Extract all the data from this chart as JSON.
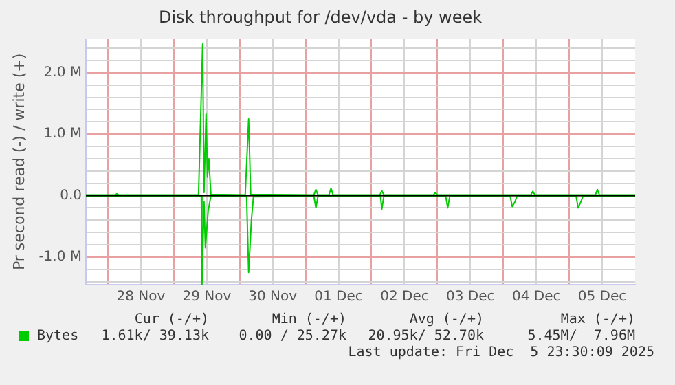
{
  "chart_data": {
    "type": "line",
    "title": "Disk throughput for /dev/vda - by week",
    "ylabel": "Pr second read (-) / write (+)",
    "xlim": [
      "2025-11-27T16:00",
      "2025-12-06T00:00"
    ],
    "xticks": [
      {
        "value": "2025-11-28T00:00",
        "label": null
      },
      {
        "value": "2025-11-28T12:00",
        "label": "28 Nov"
      },
      {
        "value": "2025-11-29T00:00",
        "label": null
      },
      {
        "value": "2025-11-29T12:00",
        "label": "29 Nov"
      },
      {
        "value": "2025-11-30T00:00",
        "label": null
      },
      {
        "value": "2025-11-30T12:00",
        "label": "30 Nov"
      },
      {
        "value": "2025-12-01T00:00",
        "label": null
      },
      {
        "value": "2025-12-01T12:00",
        "label": "01 Dec"
      },
      {
        "value": "2025-12-02T00:00",
        "label": null
      },
      {
        "value": "2025-12-02T12:00",
        "label": "02 Dec"
      },
      {
        "value": "2025-12-03T00:00",
        "label": null
      },
      {
        "value": "2025-12-03T12:00",
        "label": "03 Dec"
      },
      {
        "value": "2025-12-04T00:00",
        "label": null
      },
      {
        "value": "2025-12-04T12:00",
        "label": "04 Dec"
      },
      {
        "value": "2025-12-05T00:00",
        "label": null
      },
      {
        "value": "2025-12-05T12:00",
        "label": "05 Dec"
      }
    ],
    "ylim": [
      -1.45,
      2.55
    ],
    "yticks": [
      {
        "value": -1.4,
        "label": null
      },
      {
        "value": -1.2,
        "label": null
      },
      {
        "value": -1,
        "label": "-1.0 M"
      },
      {
        "value": -0.8,
        "label": null
      },
      {
        "value": -0.6,
        "label": null
      },
      {
        "value": -0.4,
        "label": null
      },
      {
        "value": -0.2,
        "label": null
      },
      {
        "value": 0,
        "label": "0.0"
      },
      {
        "value": 0.2,
        "label": null
      },
      {
        "value": 0.4,
        "label": null
      },
      {
        "value": 0.6,
        "label": null
      },
      {
        "value": 0.8,
        "label": null
      },
      {
        "value": 1,
        "label": "1.0 M"
      },
      {
        "value": 1.2,
        "label": null
      },
      {
        "value": 1.4,
        "label": null
      },
      {
        "value": 1.6,
        "label": null
      },
      {
        "value": 1.8,
        "label": null
      },
      {
        "value": 2,
        "label": "2.0 M"
      },
      {
        "value": 2.2,
        "label": null
      },
      {
        "value": 2.4,
        "label": null
      }
    ],
    "grid": true,
    "legend": "bottom left",
    "marker": "none",
    "line_style": "solid",
    "ref_lines": [
      {
        "axis": "y",
        "value": 0,
        "color": "#000000"
      }
    ],
    "series": [
      {
        "name": "Bytes",
        "color": "#00cc00",
        "x": [
          "2025-11-27T16:00",
          "2025-11-28T02:30",
          "2025-11-28T03:15",
          "2025-11-28T04:00",
          "2025-11-29T09:00",
          "2025-11-29T10:30",
          "2025-11-29T11:00",
          "2025-11-29T11:45",
          "2025-11-29T12:15",
          "2025-11-29T12:45",
          "2025-11-29T13:30",
          "2025-11-30T02:00",
          "2025-11-30T03:15",
          "2025-11-30T04:00",
          "2025-12-01T03:00",
          "2025-12-01T03:45",
          "2025-12-01T04:30",
          "2025-12-01T08:30",
          "2025-12-01T09:15",
          "2025-12-01T10:00",
          "2025-12-02T03:00",
          "2025-12-02T03:45",
          "2025-12-02T04:30",
          "2025-12-02T22:30",
          "2025-12-02T23:15",
          "2025-12-03T00:00",
          "2025-12-04T10:00",
          "2025-12-04T10:45",
          "2025-12-04T11:30",
          "2025-12-05T09:30",
          "2025-12-05T10:15",
          "2025-12-05T11:00",
          "2025-12-06T00:00"
        ],
        "values": [
          0.01,
          0.01,
          0.03,
          0.01,
          0.01,
          2.47,
          0.05,
          1.33,
          0.3,
          0.6,
          0.02,
          0.01,
          1.25,
          0.02,
          0.01,
          0.1,
          0.01,
          0.01,
          0.12,
          0.01,
          0.01,
          0.08,
          0.01,
          0.01,
          0.05,
          0.01,
          0.01,
          0.07,
          0.01,
          0.01,
          0.1,
          0.01,
          0.01
        ]
      },
      {
        "color": "#00cc00",
        "x": [
          "2025-11-27T16:00",
          "2025-11-29T10:00",
          "2025-11-29T10:15",
          "2025-11-29T11:00",
          "2025-11-29T11:30",
          "2025-11-29T12:30",
          "2025-11-29T13:30",
          "2025-11-30T02:30",
          "2025-11-30T03:15",
          "2025-11-30T04:15",
          "2025-11-30T05:00",
          "2025-12-01T03:00",
          "2025-12-01T03:45",
          "2025-12-01T04:30",
          "2025-12-02T03:15",
          "2025-12-02T03:45",
          "2025-12-02T04:30",
          "2025-12-03T03:00",
          "2025-12-03T03:45",
          "2025-12-03T04:30",
          "2025-12-04T02:30",
          "2025-12-04T03:15",
          "2025-12-04T04:15",
          "2025-12-04T05:00",
          "2025-12-05T02:30",
          "2025-12-05T03:15",
          "2025-12-05T04:15",
          "2025-12-05T05:00",
          "2025-12-06T00:00"
        ],
        "values": [
          -0.01,
          -0.01,
          -1.45,
          -0.1,
          -0.85,
          -0.25,
          -0.01,
          -0.01,
          -1.25,
          -0.4,
          -0.02,
          -0.01,
          -0.2,
          -0.01,
          -0.01,
          -0.22,
          -0.01,
          -0.01,
          -0.2,
          -0.01,
          -0.01,
          -0.18,
          -0.1,
          -0.01,
          -0.01,
          -0.2,
          -0.1,
          -0.01,
          -0.01
        ]
      }
    ],
    "annotations": [
      "Cur (-/+)",
      "Min (-/+)",
      "Avg (-/+)",
      "Max (-/+)",
      "1.61k/ 39.13k",
      "0.00 / 25.27k",
      "20.95k/ 52.70k",
      "5.45M/  7.96M",
      "Last update: Fri Dec  5 23:30:09 2025"
    ]
  }
}
